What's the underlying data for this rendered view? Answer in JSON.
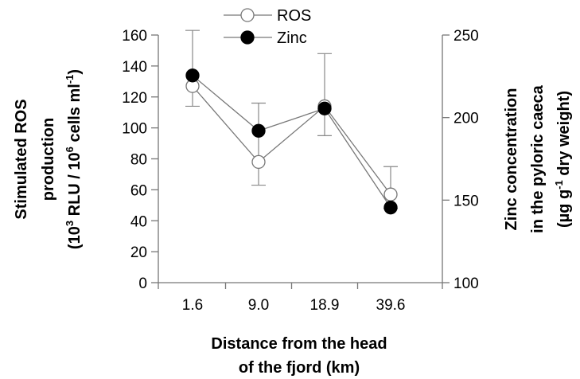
{
  "chart_data": {
    "type": "line",
    "categories": [
      "1.6",
      "9.0",
      "18.9",
      "39.6"
    ],
    "xlabel_lines": [
      "Distance from the head",
      "of the fjord (km)"
    ],
    "ylabel_left_lines": [
      "Stimulated ROS",
      "production",
      "(10^3 RLU / 10^6 cells ml^-1)"
    ],
    "ylabel_right_lines": [
      "Zinc concentration",
      "in the pyloric caeca",
      "(µg g^-1 dry weight)"
    ],
    "ylim_left": [
      0,
      160
    ],
    "yticks_left": [
      "0",
      "20",
      "40",
      "60",
      "80",
      "100",
      "120",
      "140",
      "160"
    ],
    "ylim_right": [
      100,
      250
    ],
    "yticks_right": [
      "100",
      "150",
      "200",
      "250"
    ],
    "grid": false,
    "legend_position": "top-center",
    "series": [
      {
        "name": "ROS",
        "axis": "left",
        "marker": "open-circle",
        "values": [
          127,
          78,
          114,
          57
        ],
        "error_upper": [
          163,
          116,
          148,
          75
        ],
        "error_lower": [
          114,
          63,
          95,
          48
        ]
      },
      {
        "name": "Zinc",
        "axis": "right",
        "marker": "filled-circle",
        "values": [
          225.5,
          192,
          205.5,
          145.5
        ]
      }
    ]
  }
}
